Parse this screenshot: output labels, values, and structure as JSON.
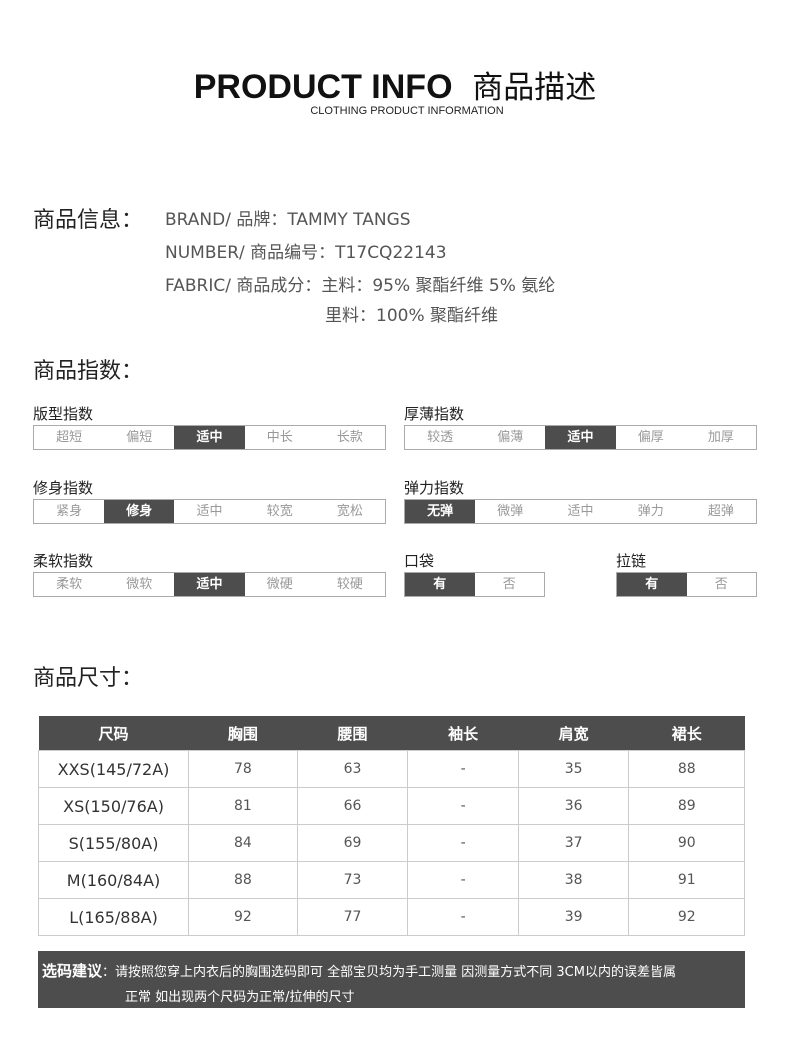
{
  "header": {
    "title": "PRODUCT INFO",
    "title_cn": "商品描述",
    "subtitle": "CLOTHING PRODUCT INFORMATION"
  },
  "info": {
    "label": "商品信息：",
    "brand": "BRAND/ 品牌：TAMMY TANGS",
    "number": "NUMBER/ 商品编号：T17CQ22143",
    "fabric": "FABRIC/ 商品成分：主料：95% 聚酯纤维  5% 氨纶",
    "lining": "里料：100% 聚酯纤维"
  },
  "index": {
    "label": "商品指数：",
    "groups": [
      {
        "name": "版型指数",
        "options": [
          "超短",
          "偏短",
          "适中",
          "中长",
          "长款"
        ],
        "selected": "适中"
      },
      {
        "name": "厚薄指数",
        "options": [
          "较透",
          "偏薄",
          "适中",
          "偏厚",
          "加厚"
        ],
        "selected": "适中"
      },
      {
        "name": "修身指数",
        "options": [
          "紧身",
          "修身",
          "适中",
          "较宽",
          "宽松"
        ],
        "selected": "修身"
      },
      {
        "name": "弹力指数",
        "options": [
          "无弹",
          "微弹",
          "适中",
          "弹力",
          "超弹"
        ],
        "selected": "无弹"
      },
      {
        "name": "柔软指数",
        "options": [
          "柔软",
          "微软",
          "适中",
          "微硬",
          "较硬"
        ],
        "selected": "适中"
      },
      {
        "name": "口袋",
        "options": [
          "有",
          "否"
        ],
        "selected": "有"
      },
      {
        "name": "拉链",
        "options": [
          "有",
          "否"
        ],
        "selected": "有"
      }
    ]
  },
  "size": {
    "label": "商品尺寸：",
    "headers": [
      "尺码",
      "胸围",
      "腰围",
      "袖长",
      "肩宽",
      "裙长"
    ],
    "rows": [
      [
        "XXS(145/72A)",
        "78",
        "63",
        "-",
        "35",
        "88"
      ],
      [
        "XS(150/76A)",
        "81",
        "66",
        "-",
        "36",
        "89"
      ],
      [
        "S(155/80A)",
        "84",
        "69",
        "-",
        "37",
        "90"
      ],
      [
        "M(160/84A)",
        "88",
        "73",
        "-",
        "38",
        "91"
      ],
      [
        "L(165/88A)",
        "92",
        "77",
        "-",
        "39",
        "92"
      ]
    ]
  },
  "note": {
    "label": "选码建议",
    "line1": "：请按照您穿上内衣后的胸围选码即可 全部宝贝均为手工测量 因测量方式不同 3CM以内的误差皆属",
    "line2": "正常  如出现两个尺码为正常/拉伸的尺寸"
  },
  "colors": {
    "dark": "#4d4d4d",
    "border": "#aaaaaa"
  }
}
